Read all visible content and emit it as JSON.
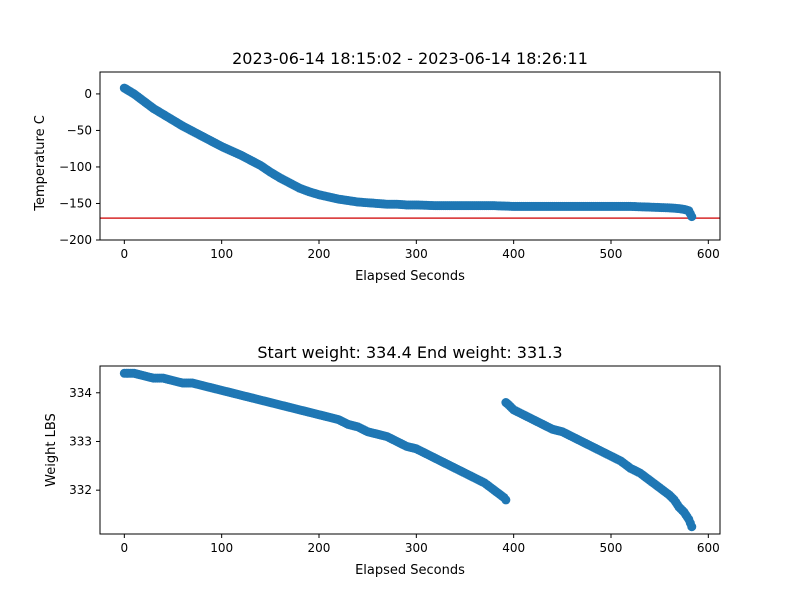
{
  "chart_data": [
    {
      "type": "scatter",
      "title": "2023-06-14 18:15:02 - 2023-06-14 18:26:11",
      "xlabel": "Elapsed Seconds",
      "ylabel": "Temperature C",
      "xlim": [
        -25,
        612
      ],
      "ylim": [
        -200,
        30
      ],
      "xticks": [
        0,
        100,
        200,
        300,
        400,
        500,
        600
      ],
      "yticks": [
        0,
        -50,
        -100,
        -150,
        -200
      ],
      "grid": false,
      "marker_color": "#1f77b4",
      "reference_line": {
        "y": -170,
        "color": "#d62728"
      },
      "series": [
        {
          "x": [
            0,
            5,
            10,
            15,
            20,
            25,
            30,
            40,
            50,
            60,
            70,
            80,
            90,
            100,
            110,
            120,
            130,
            140,
            150,
            160,
            170,
            180,
            190,
            200,
            210,
            220,
            230,
            240,
            250,
            260,
            270,
            280,
            290,
            300,
            320,
            340,
            360,
            380,
            400,
            420,
            440,
            460,
            480,
            500,
            520,
            540,
            560,
            570,
            575,
            580,
            583
          ],
          "y": [
            8,
            4,
            0,
            -5,
            -10,
            -15,
            -20,
            -28,
            -36,
            -44,
            -51,
            -58,
            -65,
            -72,
            -78,
            -84,
            -91,
            -98,
            -107,
            -115,
            -122,
            -129,
            -134,
            -138,
            -141,
            -144,
            -146,
            -148,
            -149,
            -150,
            -151,
            -151,
            -152,
            -152,
            -153,
            -153,
            -153,
            -153,
            -154,
            -154,
            -154,
            -154,
            -154,
            -154,
            -154,
            -155,
            -156,
            -157,
            -158,
            -160,
            -168
          ]
        }
      ]
    },
    {
      "type": "scatter",
      "title": "Start weight: 334.4 End weight: 331.3",
      "xlabel": "Elapsed Seconds",
      "ylabel": "Weight LBS",
      "xlim": [
        -25,
        612
      ],
      "ylim": [
        331.1,
        334.55
      ],
      "xticks": [
        0,
        100,
        200,
        300,
        400,
        500,
        600
      ],
      "yticks": [
        332,
        333,
        334
      ],
      "grid": false,
      "marker_color": "#1f77b4",
      "series": [
        {
          "x": [
            0,
            10,
            20,
            30,
            40,
            50,
            60,
            70,
            80,
            90,
            100,
            110,
            120,
            130,
            140,
            150,
            160,
            170,
            180,
            190,
            200,
            210,
            220,
            230,
            240,
            250,
            260,
            270,
            280,
            290,
            300,
            310,
            320,
            330,
            340,
            350,
            360,
            370,
            380,
            390,
            392
          ],
          "y": [
            334.4,
            334.4,
            334.35,
            334.3,
            334.3,
            334.25,
            334.2,
            334.2,
            334.15,
            334.1,
            334.05,
            334.0,
            333.95,
            333.9,
            333.85,
            333.8,
            333.75,
            333.7,
            333.65,
            333.6,
            333.55,
            333.5,
            333.45,
            333.35,
            333.3,
            333.2,
            333.15,
            333.1,
            333.0,
            332.9,
            332.85,
            332.75,
            332.65,
            332.55,
            332.45,
            332.35,
            332.25,
            332.15,
            332.0,
            331.85,
            331.8
          ]
        },
        {
          "x": [
            392,
            395,
            400,
            410,
            420,
            430,
            440,
            450,
            460,
            470,
            480,
            490,
            500,
            510,
            520,
            530,
            540,
            550,
            560,
            565,
            570,
            575,
            580,
            583
          ],
          "y": [
            333.8,
            333.75,
            333.65,
            333.55,
            333.45,
            333.35,
            333.25,
            333.2,
            333.1,
            333.0,
            332.9,
            332.8,
            332.7,
            332.6,
            332.45,
            332.35,
            332.2,
            332.05,
            331.9,
            331.8,
            331.65,
            331.55,
            331.4,
            331.25
          ]
        }
      ]
    }
  ]
}
